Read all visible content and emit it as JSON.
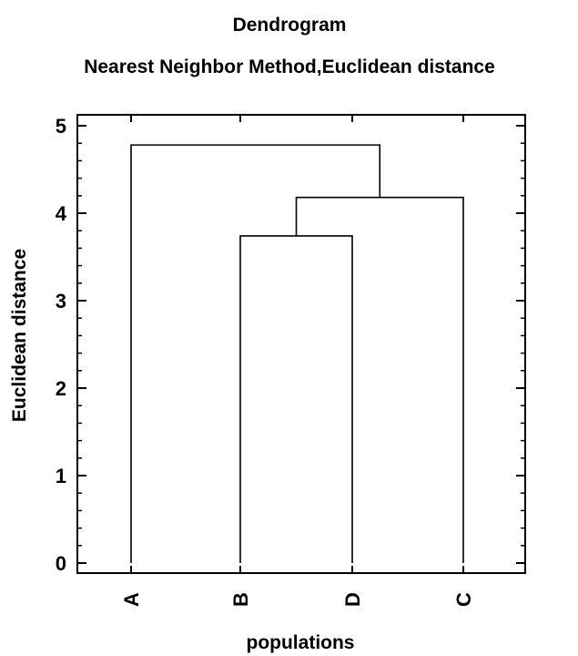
{
  "chart_data": {
    "type": "dendrogram",
    "title": "Dendrogram",
    "subtitle": "Nearest Neighbor Method,Euclidean distance",
    "xlabel": "populations",
    "ylabel": "Euclidean distance",
    "ylim": [
      0,
      5.2
    ],
    "yticks": [
      "0",
      "1",
      "2",
      "3",
      "4",
      "5"
    ],
    "leaves": [
      "A",
      "B",
      "D",
      "C"
    ],
    "merges": [
      {
        "left": "B",
        "right": "D",
        "height": 3.74
      },
      {
        "left": "B+D",
        "right": "C",
        "height": 4.18
      },
      {
        "left": "A",
        "right": "B+D+C",
        "height": 4.78
      }
    ],
    "grid": false,
    "line_color": "#000000"
  }
}
